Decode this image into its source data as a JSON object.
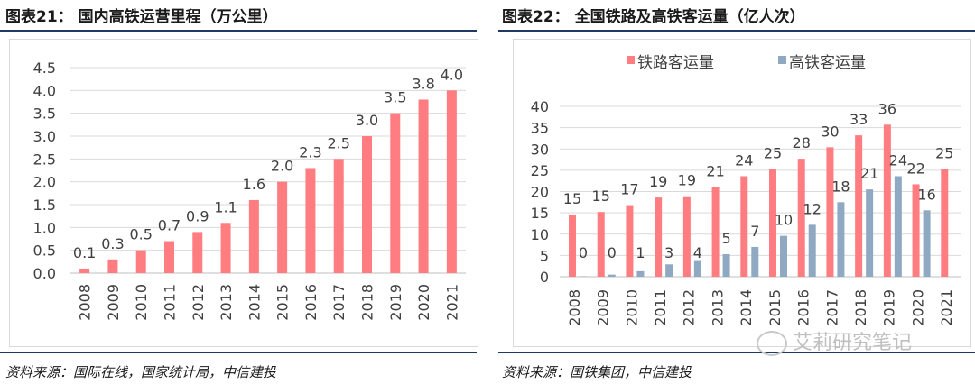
{
  "left_panel": {
    "title": "图表21： 国内高铁运营里程（万公里）",
    "source": "资料来源：国际在线，国家统计局，中信建投"
  },
  "right_panel": {
    "title": "图表22： 全国铁路及高铁客运量（亿人次）",
    "source": "资料来源：国铁集团，中信建投"
  },
  "watermark": {
    "text": "艾莉研究笔记"
  },
  "colors": {
    "pink": "#ff7c80",
    "blue": "#8ea9c1",
    "rule": "#1f3864",
    "grid": "#d9d9d9"
  },
  "chart_data": [
    {
      "type": "bar",
      "title": "国内高铁运营里程（万公里）",
      "categories": [
        "2008",
        "2009",
        "2010",
        "2011",
        "2012",
        "2013",
        "2014",
        "2015",
        "2016",
        "2017",
        "2018",
        "2019",
        "2020",
        "2021"
      ],
      "values": [
        0.1,
        0.3,
        0.5,
        0.7,
        0.9,
        1.1,
        1.6,
        2.0,
        2.3,
        2.5,
        3.0,
        3.5,
        3.8,
        4.0
      ],
      "labels": [
        "0.1",
        "0.3",
        "0.5",
        "0.7",
        "0.9",
        "1.1",
        "1.6",
        "2.0",
        "2.3",
        "2.5",
        "3.0",
        "3.5",
        "3.8",
        "4.0"
      ],
      "yticks": [
        "0.0",
        "0.5",
        "1.0",
        "1.5",
        "2.0",
        "2.5",
        "3.0",
        "3.5",
        "4.0",
        "4.5"
      ],
      "ylim": [
        0,
        4.5
      ],
      "grid": true
    },
    {
      "type": "bar",
      "title": "全国铁路及高铁客运量（亿人次）",
      "categories": [
        "2008",
        "2009",
        "2010",
        "2011",
        "2012",
        "2013",
        "2014",
        "2015",
        "2016",
        "2017",
        "2018",
        "2019",
        "2020",
        "2021"
      ],
      "series": [
        {
          "name": "铁路客运量",
          "values": [
            14.6,
            15.2,
            16.8,
            18.6,
            18.9,
            21.1,
            23.6,
            25.3,
            27.7,
            30.4,
            33.2,
            35.7,
            21.7,
            25.3
          ],
          "labels": [
            "15",
            "15",
            "17",
            "19",
            "19",
            "21",
            "24",
            "25",
            "28",
            "30",
            "33",
            "36",
            "22",
            "25"
          ]
        },
        {
          "name": "高铁客运量",
          "values": [
            0.1,
            0.5,
            1.3,
            2.9,
            3.9,
            5.3,
            7.0,
            9.6,
            12.2,
            17.5,
            20.5,
            23.6,
            15.6,
            null
          ],
          "labels": [
            "0",
            "0",
            "1",
            "3",
            "4",
            "5",
            "7",
            "10",
            "12",
            "18",
            "21",
            "24",
            "16",
            ""
          ]
        }
      ],
      "yticks": [
        "0",
        "5",
        "10",
        "15",
        "20",
        "25",
        "30",
        "35",
        "40"
      ],
      "ylim": [
        0,
        40
      ],
      "legend": "top",
      "grid": true
    }
  ]
}
